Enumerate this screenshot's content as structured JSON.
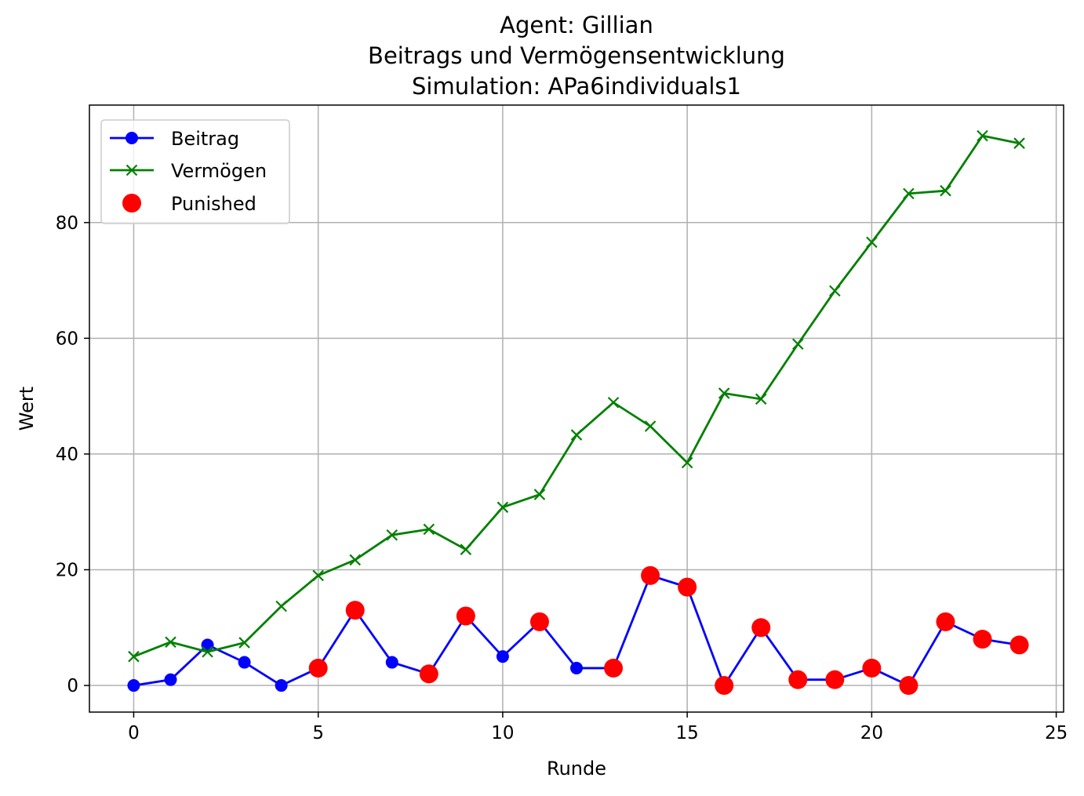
{
  "chart_data": {
    "type": "line",
    "title_lines": [
      "Agent: Gillian",
      "Beitrags und Vermögensentwicklung",
      "Simulation: APa6individuals1"
    ],
    "xlabel": "Runde",
    "ylabel": "Wert",
    "xlim": [
      -1.2,
      25.2
    ],
    "ylim": [
      -4.6,
      100.3
    ],
    "xticks": [
      0,
      5,
      10,
      15,
      20,
      25
    ],
    "yticks": [
      0,
      20,
      40,
      60,
      80
    ],
    "grid": true,
    "legend_position": "upper-left",
    "colors": {
      "beitrag": "#0000ff",
      "vermoegen": "#008000",
      "punished": "#ff0000",
      "grid": "#b0b0b0"
    },
    "x": [
      0,
      1,
      2,
      3,
      4,
      5,
      6,
      7,
      8,
      9,
      10,
      11,
      12,
      13,
      14,
      15,
      16,
      17,
      18,
      19,
      20,
      21,
      22,
      23,
      24
    ],
    "series": [
      {
        "name": "Beitrag",
        "marker": "circle",
        "color": "#0000ff",
        "values": [
          0,
          1,
          7,
          4,
          0,
          3,
          13,
          4,
          2,
          12,
          5,
          11,
          3,
          3,
          19,
          17,
          0,
          10,
          1,
          1,
          3,
          0,
          11,
          8,
          7
        ]
      },
      {
        "name": "Vermögen",
        "marker": "x",
        "color": "#008000",
        "values": [
          5,
          7.5,
          5.8,
          7.4,
          13.7,
          19,
          21.7,
          26,
          27,
          23.5,
          30.8,
          33,
          43.3,
          48.9,
          44.8,
          38.5,
          50.5,
          49.5,
          59,
          68.2,
          76.6,
          85,
          85.5,
          95,
          93.7
        ]
      },
      {
        "name": "Punished",
        "marker": "scatter",
        "color": "#ff0000",
        "points": [
          [
            5,
            3
          ],
          [
            6,
            13
          ],
          [
            8,
            2
          ],
          [
            9,
            12
          ],
          [
            11,
            11
          ],
          [
            13,
            3
          ],
          [
            14,
            19
          ],
          [
            15,
            17
          ],
          [
            16,
            0
          ],
          [
            17,
            10
          ],
          [
            18,
            1
          ],
          [
            19,
            1
          ],
          [
            20,
            3
          ],
          [
            21,
            0
          ],
          [
            22,
            11
          ],
          [
            23,
            8
          ],
          [
            24,
            7
          ]
        ]
      }
    ]
  }
}
